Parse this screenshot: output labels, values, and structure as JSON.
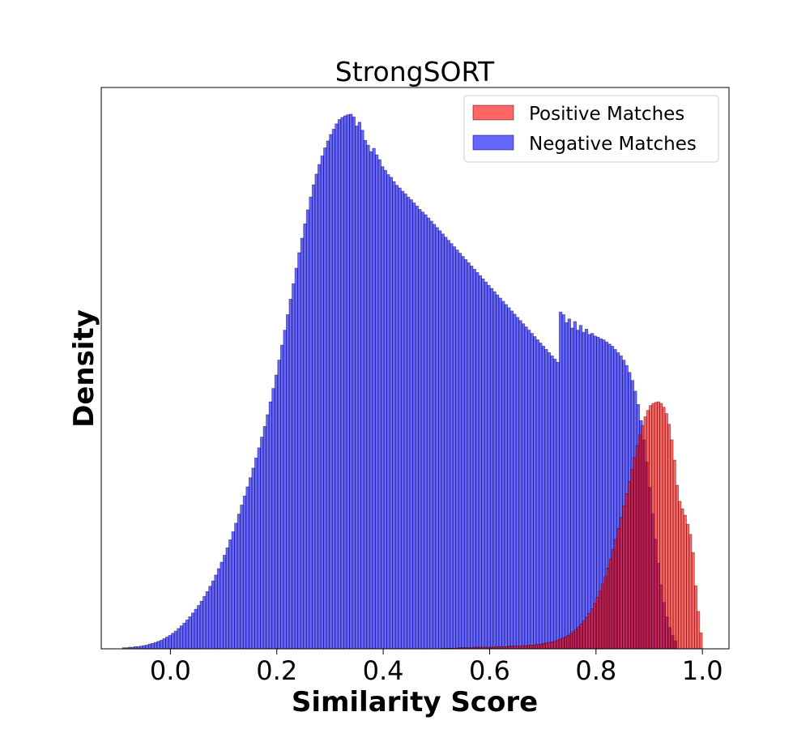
{
  "chart_data": {
    "type": "bar",
    "title": "StrongSORT",
    "xlabel": "Similarity Score",
    "ylabel": "Density",
    "xlim": [
      -0.13,
      1.05
    ],
    "ylim": [
      0,
      1.0
    ],
    "x_ticks": [
      0.0,
      0.2,
      0.4,
      0.6,
      0.8,
      1.0
    ],
    "x_tick_labels": [
      "0.0",
      "0.2",
      "0.4",
      "0.6",
      "0.8",
      "1.0"
    ],
    "y_ticks_visible": false,
    "legend_position": "top-right",
    "series": [
      {
        "name": "Positive Matches",
        "color": "#ff0000",
        "opacity": 0.6,
        "bin_start": 0.5,
        "bin_width": 0.005,
        "values": [
          0.0,
          0.0,
          0.001,
          0.001,
          0.001,
          0.001,
          0.001,
          0.001,
          0.002,
          0.002,
          0.002,
          0.002,
          0.002,
          0.002,
          0.003,
          0.003,
          0.003,
          0.003,
          0.003,
          0.003,
          0.003,
          0.003,
          0.004,
          0.004,
          0.004,
          0.004,
          0.004,
          0.005,
          0.005,
          0.005,
          0.005,
          0.005,
          0.006,
          0.006,
          0.006,
          0.007,
          0.007,
          0.008,
          0.008,
          0.009,
          0.01,
          0.011,
          0.012,
          0.013,
          0.014,
          0.016,
          0.018,
          0.02,
          0.022,
          0.025,
          0.028,
          0.032,
          0.036,
          0.041,
          0.046,
          0.052,
          0.059,
          0.066,
          0.075,
          0.085,
          0.096,
          0.108,
          0.121,
          0.135,
          0.151,
          0.168,
          0.186,
          0.205,
          0.225,
          0.246,
          0.268,
          0.29,
          0.313,
          0.336,
          0.358,
          0.38,
          0.4,
          0.418,
          0.434,
          0.446,
          0.455,
          0.459,
          0.461,
          0.462,
          0.459,
          0.452,
          0.44,
          0.42,
          0.391,
          0.353,
          0.306,
          0.276,
          0.262,
          0.25,
          0.233,
          0.214,
          0.18,
          0.118,
          0.07,
          0.03
        ]
      },
      {
        "name": "Negative Matches",
        "color": "#0000ff",
        "opacity": 0.6,
        "bin_start": -0.09,
        "bin_width": 0.0054,
        "values": [
          0.002,
          0.002,
          0.003,
          0.003,
          0.004,
          0.004,
          0.005,
          0.006,
          0.007,
          0.009,
          0.01,
          0.012,
          0.014,
          0.016,
          0.019,
          0.022,
          0.025,
          0.029,
          0.033,
          0.038,
          0.043,
          0.048,
          0.054,
          0.06,
          0.067,
          0.074,
          0.081,
          0.089,
          0.098,
          0.107,
          0.117,
          0.127,
          0.138,
          0.15,
          0.162,
          0.175,
          0.189,
          0.204,
          0.219,
          0.235,
          0.252,
          0.269,
          0.286,
          0.303,
          0.32,
          0.338,
          0.357,
          0.376,
          0.396,
          0.416,
          0.438,
          0.462,
          0.487,
          0.512,
          0.54,
          0.568,
          0.596,
          0.625,
          0.654,
          0.683,
          0.712,
          0.741,
          0.768,
          0.795,
          0.821,
          0.845,
          0.868,
          0.888,
          0.906,
          0.922,
          0.937,
          0.95,
          0.962,
          0.972,
          0.982,
          0.99,
          0.994,
          0.997,
          0.999,
          1.0,
          0.995,
          0.978,
          0.985,
          0.97,
          0.951,
          0.942,
          0.93,
          0.936,
          0.924,
          0.915,
          0.902,
          0.895,
          0.887,
          0.882,
          0.874,
          0.867,
          0.862,
          0.856,
          0.851,
          0.845,
          0.84,
          0.834,
          0.828,
          0.822,
          0.817,
          0.812,
          0.806,
          0.8,
          0.794,
          0.788,
          0.782,
          0.776,
          0.77,
          0.764,
          0.758,
          0.752,
          0.746,
          0.74,
          0.734,
          0.728,
          0.722,
          0.716,
          0.71,
          0.704,
          0.698,
          0.692,
          0.686,
          0.68,
          0.674,
          0.668,
          0.662,
          0.656,
          0.65,
          0.644,
          0.638,
          0.632,
          0.626,
          0.62,
          0.614,
          0.608,
          0.602,
          0.596,
          0.59,
          0.584,
          0.578,
          0.572,
          0.566,
          0.56,
          0.554,
          0.548,
          0.542,
          0.536,
          0.63,
          0.625,
          0.61,
          0.617,
          0.6,
          0.612,
          0.596,
          0.605,
          0.592,
          0.598,
          0.588,
          0.59,
          0.585,
          0.583,
          0.58,
          0.578,
          0.574,
          0.57,
          0.566,
          0.56,
          0.554,
          0.548,
          0.54,
          0.53,
          0.517,
          0.502,
          0.482,
          0.457,
          0.427,
          0.391,
          0.349,
          0.302,
          0.253,
          0.205,
          0.16,
          0.12,
          0.087,
          0.06,
          0.04,
          0.025,
          0.015
        ]
      }
    ]
  }
}
